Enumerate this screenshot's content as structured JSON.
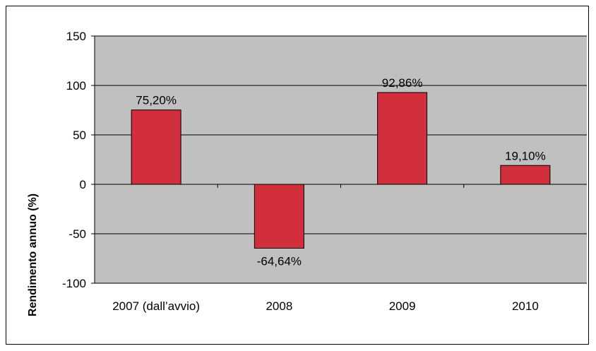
{
  "chart_data": {
    "type": "bar",
    "categories": [
      "2007 (dall’avvio)",
      "2008",
      "2009",
      "2010"
    ],
    "values": [
      75.2,
      -64.64,
      92.86,
      19.1
    ],
    "data_labels": [
      "75,20%",
      "-64,64%",
      "92,86%",
      "19,10%"
    ],
    "ylabel": "Rendimento annuo (%)",
    "ylim": [
      -100,
      150
    ],
    "yticks": [
      150,
      100,
      50,
      0,
      -50,
      -100
    ],
    "grid": true,
    "legend": "none",
    "colors": {
      "bar": "#d22f3c",
      "plot_bg": "#c0c0c0",
      "gridline": "#000000"
    }
  }
}
